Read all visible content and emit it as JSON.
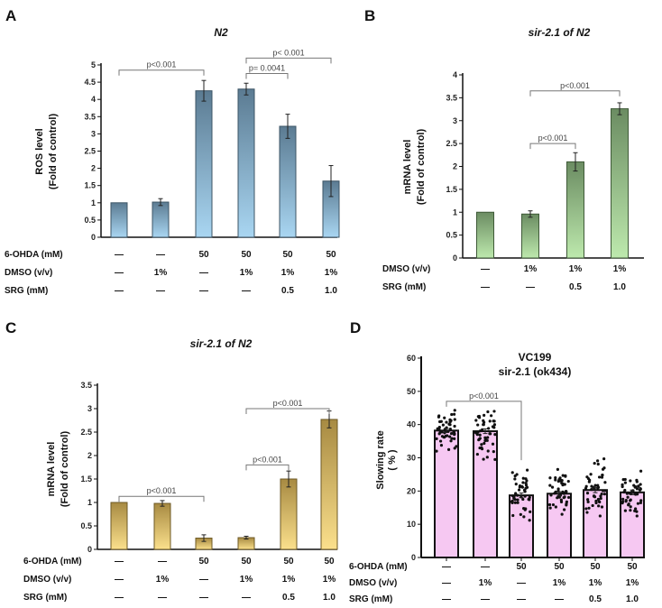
{
  "chart_data": [
    {
      "panel": "A",
      "type": "bar",
      "title": "N2",
      "title_italic": true,
      "ylabel": [
        "ROS level",
        "(Fold of control)"
      ],
      "ylim": [
        0,
        5
      ],
      "yticks": [
        0,
        0.5,
        1,
        1.5,
        2,
        2.5,
        3,
        3.5,
        4,
        4.5,
        5
      ],
      "values": [
        1.0,
        1.02,
        4.25,
        4.3,
        3.22,
        1.63
      ],
      "errors": [
        0,
        0.1,
        0.3,
        0.17,
        0.35,
        0.45
      ],
      "colors": {
        "top": "#5b7b92",
        "bottom": "#a9d6f2",
        "stroke": "#3d5566"
      },
      "treatments": [
        {
          "label": "6-OHDA (mM)",
          "values": [
            "—",
            "—",
            "50",
            "50",
            "50",
            "50"
          ]
        },
        {
          "label": "DMSO (v/v)",
          "values": [
            "—",
            "1%",
            "—",
            "1%",
            "1%",
            "1%"
          ]
        },
        {
          "label": "SRG (mM)",
          "values": [
            "—",
            "—",
            "—",
            "—",
            "0.5",
            "1.0"
          ]
        }
      ],
      "significance": [
        {
          "from": 0,
          "to": 2,
          "at": 4.85,
          "label": "p<0.001"
        },
        {
          "from": 3,
          "to": 4,
          "at": 4.75,
          "label": "p= 0.0041"
        },
        {
          "from": 3,
          "to": 5,
          "at": 5.2,
          "label": "p< 0.001"
        }
      ]
    },
    {
      "panel": "B",
      "type": "bar",
      "title": "sir-2.1 of N2",
      "title_italic": true,
      "ylabel": [
        "mRNA level",
        "(Fold of control)"
      ],
      "ylim": [
        0,
        4
      ],
      "yticks": [
        0,
        0.5,
        1,
        1.5,
        2,
        2.5,
        3,
        3.5,
        4
      ],
      "values": [
        1.0,
        0.96,
        2.1,
        3.26
      ],
      "errors": [
        0,
        0.07,
        0.2,
        0.13
      ],
      "colors": {
        "top": "#6b8c62",
        "bottom": "#bde9ad",
        "stroke": "#3f5a38"
      },
      "treatments": [
        {
          "label": "DMSO (v/v)",
          "values": [
            "—",
            "1%",
            "1%",
            "1%"
          ]
        },
        {
          "label": "SRG (mM)",
          "values": [
            "—",
            "—",
            "0.5",
            "1.0"
          ]
        }
      ],
      "significance": [
        {
          "from": 1,
          "to": 3,
          "at": 3.65,
          "label": "p<0.001"
        },
        {
          "from": 1,
          "to": 2,
          "at": 2.5,
          "label": "p<0.001"
        }
      ]
    },
    {
      "panel": "C",
      "type": "bar",
      "title": "sir-2.1 of N2",
      "title_italic": true,
      "ylabel": [
        "mRNA level",
        "(Fold of control)"
      ],
      "ylim": [
        0,
        3.5
      ],
      "yticks": [
        0,
        0.5,
        1,
        1.5,
        2,
        2.5,
        3,
        3.5
      ],
      "values": [
        1.0,
        0.98,
        0.24,
        0.25,
        1.5,
        2.77
      ],
      "errors": [
        0,
        0.06,
        0.07,
        0.03,
        0.17,
        0.18
      ],
      "colors": {
        "top": "#a78a42",
        "bottom": "#fbe08c",
        "stroke": "#6e5a26"
      },
      "treatments": [
        {
          "label": "6-OHDA (mM)",
          "values": [
            "—",
            "—",
            "50",
            "50",
            "50",
            "50"
          ]
        },
        {
          "label": "DMSO (v/v)",
          "values": [
            "—",
            "1%",
            "—",
            "1%",
            "1%",
            "1%"
          ]
        },
        {
          "label": "SRG (mM)",
          "values": [
            "—",
            "—",
            "—",
            "—",
            "0.5",
            "1.0"
          ]
        }
      ],
      "significance": [
        {
          "from": 0,
          "to": 2,
          "at": 1.13,
          "label": "p<0.001"
        },
        {
          "from": 3,
          "to": 5,
          "at": 3.0,
          "label": "p<0.001"
        },
        {
          "from": 3,
          "to": 4,
          "at": 1.8,
          "label": "p<0.001"
        }
      ]
    },
    {
      "panel": "D",
      "type": "bar+scatter",
      "title": "VC199",
      "subtitle": "sir-2.1 (ok434)",
      "ylabel": [
        "Slowing rate",
        "( % )"
      ],
      "ylim": [
        0,
        60
      ],
      "yticks": [
        0,
        10,
        20,
        30,
        40,
        50,
        60
      ],
      "values": [
        38.2,
        38.0,
        18.7,
        19.2,
        20.3,
        19.6
      ],
      "errors": [
        0.6,
        0.7,
        0.7,
        0.6,
        0.8,
        0.7
      ],
      "point_ranges": [
        [
          32,
          44.3
        ],
        [
          29.5,
          44
        ],
        [
          11.2,
          26.3
        ],
        [
          13,
          26.5
        ],
        [
          12.5,
          29.7
        ],
        [
          12.5,
          26
        ]
      ],
      "colors": {
        "fill": "#f6c8f2",
        "stroke": "#111111",
        "points": "#111111"
      },
      "treatments": [
        {
          "label": "6-OHDA (mM)",
          "values": [
            "—",
            "—",
            "50",
            "50",
            "50",
            "50"
          ]
        },
        {
          "label": "DMSO (v/v)",
          "values": [
            "—",
            "1%",
            "—",
            "1%",
            "1%",
            "1%"
          ]
        },
        {
          "label": "SRG (mM)",
          "values": [
            "—",
            "—",
            "—",
            "—",
            "0.5",
            "1.0"
          ]
        }
      ],
      "significance": [
        {
          "from": 0,
          "to": 2,
          "at": 47,
          "label": "p<0.001"
        }
      ]
    }
  ]
}
